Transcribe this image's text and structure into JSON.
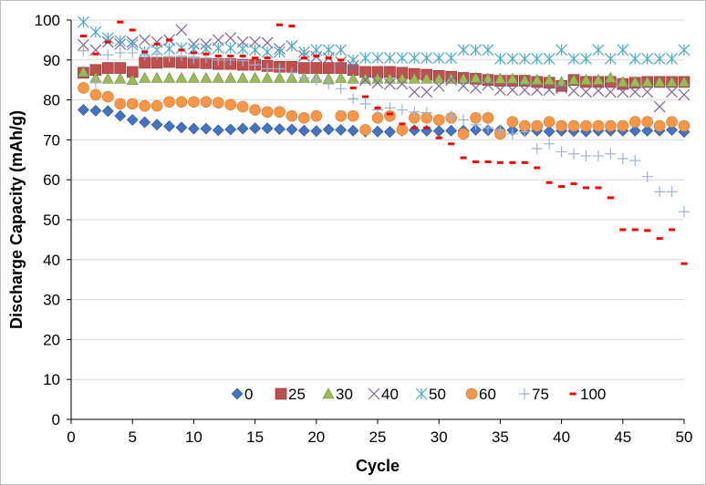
{
  "chart_data": {
    "type": "scatter",
    "xlabel": "Cycle",
    "ylabel": "Discharge Capacity (mAh/g)",
    "xlim": [
      0,
      50
    ],
    "ylim": [
      0,
      100
    ],
    "xticks": [
      0,
      5,
      10,
      15,
      20,
      25,
      30,
      35,
      40,
      45,
      50
    ],
    "yticks": [
      0,
      10,
      20,
      30,
      40,
      50,
      60,
      70,
      80,
      90,
      100
    ],
    "grid": "horizontal",
    "legend_position": "bottom-inside",
    "series": [
      {
        "name": "0",
        "marker": "diamond",
        "color": "#4472C4",
        "values": [
          77.5,
          77.3,
          77.2,
          76.0,
          75.0,
          74.4,
          73.8,
          73.4,
          73.1,
          72.8,
          72.8,
          72.4,
          72.6,
          72.8,
          72.9,
          72.9,
          72.7,
          72.6,
          72.3,
          72.2,
          72.6,
          72.5,
          72.3,
          72.1,
          72.1,
          72.0,
          72.3,
          72.4,
          72.3,
          72.2,
          72.3,
          72.3,
          72.5,
          72.4,
          72.4,
          72.4,
          72.2,
          72.3,
          72.1,
          72.3,
          72.2,
          72.1,
          72.3,
          72.3,
          72.3,
          72.3,
          72.3,
          72.3,
          72.5,
          72.0
        ]
      },
      {
        "name": "25",
        "marker": "square",
        "color": "#C0504D",
        "values": [
          86.8,
          87.5,
          88.0,
          88.0,
          87.0,
          89.3,
          89.3,
          89.5,
          89.3,
          89.3,
          89.2,
          89.0,
          89.0,
          88.8,
          88.8,
          88.5,
          88.3,
          88.3,
          88.0,
          88.0,
          88.0,
          88.0,
          87.5,
          87.0,
          87.0,
          87.0,
          86.8,
          86.5,
          86.3,
          86.0,
          85.8,
          85.5,
          85.3,
          85.0,
          84.8,
          84.8,
          84.8,
          84.5,
          84.3,
          83.5,
          85.0,
          84.5,
          84.5,
          84.5,
          84.0,
          84.3,
          84.5,
          84.5,
          84.5,
          84.5
        ]
      },
      {
        "name": "30",
        "marker": "triangle",
        "color": "#9BBB59",
        "values": [
          87.0,
          85.5,
          85.3,
          85.3,
          85.0,
          85.5,
          85.5,
          85.5,
          85.5,
          85.5,
          85.5,
          85.5,
          85.5,
          85.5,
          85.5,
          85.5,
          85.5,
          85.5,
          85.5,
          85.5,
          85.3,
          85.5,
          85.3,
          85.3,
          85.3,
          85.3,
          85.3,
          85.3,
          85.3,
          85.3,
          85.3,
          85.3,
          85.5,
          85.3,
          85.3,
          85.3,
          85.0,
          85.0,
          85.0,
          84.5,
          85.0,
          85.0,
          85.0,
          85.5,
          84.5,
          84.5,
          84.5,
          84.5,
          84.5,
          84.5
        ]
      },
      {
        "name": "40",
        "marker": "x",
        "color": "#8064A2",
        "values": [
          93.8,
          92.5,
          94.5,
          94.0,
          94.5,
          95.0,
          94.5,
          95.0,
          97.5,
          94.0,
          94.0,
          95.0,
          95.5,
          94.5,
          94.5,
          94.3,
          92.8,
          93.5,
          91.0,
          90.8,
          90.5,
          89.5,
          88.5,
          85.0,
          84.3,
          84.0,
          84.0,
          82.0,
          82.0,
          83.5,
          85.0,
          83.5,
          83.0,
          83.8,
          82.5,
          82.5,
          82.5,
          82.5,
          82.5,
          83.0,
          82.3,
          82.0,
          82.3,
          82.0,
          82.0,
          82.0,
          82.0,
          78.3,
          82.0,
          81.3
        ]
      },
      {
        "name": "50",
        "marker": "star",
        "color": "#4BACC6",
        "values": [
          99.5,
          97.0,
          95.5,
          94.8,
          93.8,
          92.0,
          92.5,
          92.8,
          93.0,
          92.8,
          92.8,
          93.0,
          93.0,
          92.8,
          92.5,
          92.0,
          92.0,
          93.5,
          92.0,
          92.5,
          92.5,
          92.5,
          90.0,
          90.5,
          90.5,
          90.5,
          90.5,
          90.5,
          90.5,
          90.5,
          90.5,
          92.5,
          92.5,
          92.5,
          90.3,
          90.3,
          90.3,
          90.3,
          90.3,
          92.5,
          90.3,
          90.3,
          92.5,
          90.3,
          92.5,
          90.3,
          90.3,
          90.3,
          90.3,
          92.5
        ]
      },
      {
        "name": "60",
        "marker": "circle",
        "color": "#F79646",
        "values": [
          83.0,
          81.3,
          80.8,
          79.0,
          79.0,
          78.5,
          78.5,
          79.5,
          79.5,
          79.5,
          79.5,
          79.3,
          78.8,
          78.3,
          77.5,
          77.0,
          77.0,
          76.0,
          75.5,
          76.0,
          null,
          76.0,
          76.0,
          72.5,
          75.5,
          76.0,
          72.5,
          75.5,
          75.5,
          75.0,
          75.5,
          71.5,
          75.5,
          75.5,
          71.5,
          74.5,
          73.5,
          73.5,
          74.5,
          73.5,
          73.5,
          73.5,
          73.5,
          73.5,
          73.5,
          74.5,
          74.5,
          73.5,
          74.5,
          73.5
        ]
      },
      {
        "name": "75",
        "marker": "plus",
        "color": "#9EB3D8",
        "values": [
          92.3,
          84.3,
          91.3,
          91.8,
          91.8,
          91.3,
          91.5,
          90.8,
          91.0,
          90.5,
          90.5,
          90.0,
          90.0,
          89.8,
          88.8,
          87.8,
          87.8,
          86.8,
          85.5,
          85.0,
          84.0,
          82.8,
          80.3,
          79.0,
          77.5,
          78.0,
          77.5,
          77.0,
          76.8,
          null,
          76.0,
          75.0,
          73.8,
          73.0,
          72.5,
          71.5,
          72.0,
          67.8,
          69.0,
          67.0,
          66.5,
          66.0,
          66.0,
          66.5,
          65.3,
          64.8,
          60.8,
          57.0,
          57.0,
          52.0
        ]
      },
      {
        "name": "100",
        "marker": "dash",
        "color": "#FF0000",
        "values": [
          96.0,
          91.5,
          94.5,
          99.5,
          97.5,
          92.0,
          94.0,
          95.0,
          92.5,
          91.8,
          91.5,
          91.0,
          91.0,
          91.0,
          90.5,
          90.5,
          98.8,
          98.5,
          90.5,
          91.0,
          90.5,
          90.0,
          83.0,
          80.8,
          78.0,
          76.5,
          74.0,
          73.0,
          73.0,
          70.5,
          69.0,
          65.5,
          64.5,
          64.5,
          64.3,
          64.3,
          64.3,
          63.0,
          59.3,
          58.3,
          59.0,
          58.0,
          58.0,
          55.5,
          47.5,
          47.5,
          47.3,
          45.3,
          47.5,
          39.0
        ]
      }
    ]
  }
}
